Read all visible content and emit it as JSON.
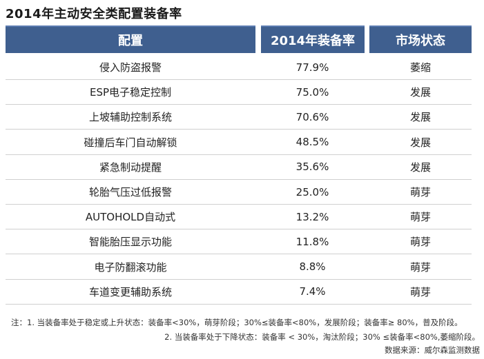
{
  "title": "2014年主动安全类配置装备率",
  "headers": {
    "config": "配置",
    "rate": "2014年装备率",
    "status": "市场状态"
  },
  "chart_data": {
    "type": "table",
    "title": "2014年主动安全类配置装备率",
    "columns": [
      "配置",
      "2014年装备率",
      "市场状态"
    ],
    "rows": [
      {
        "config": "侵入防盗报警",
        "rate": "77.9%",
        "status": "萎缩"
      },
      {
        "config": "ESP电子稳定控制",
        "rate": "75.0%",
        "status": "发展"
      },
      {
        "config": "上坡辅助控制系统",
        "rate": "70.6%",
        "status": "发展"
      },
      {
        "config": "碰撞后车门自动解锁",
        "rate": "48.5%",
        "status": "发展"
      },
      {
        "config": "紧急制动提醒",
        "rate": "35.6%",
        "status": "发展"
      },
      {
        "config": "轮胎气压过低报警",
        "rate": "25.0%",
        "status": "萌芽"
      },
      {
        "config": "AUTOHOLD自动式",
        "rate": "13.2%",
        "status": "萌芽"
      },
      {
        "config": "智能胎压显示功能",
        "rate": "11.8%",
        "status": "萌芽"
      },
      {
        "config": "电子防翻滚功能",
        "rate": "8.8%",
        "status": "萌芽"
      },
      {
        "config": "车道变更辅助系统",
        "rate": "7.4%",
        "status": "萌芽"
      }
    ]
  },
  "notes": {
    "line1": "注：1. 当装备率处于稳定或上升状态：装备率<30%，萌芽阶段；30%≤装备率<80%，发展阶段；装备率≥ 80%，普及阶段。",
    "line2": "2. 当装备率处于下降状态：装备率 < 30%，淘汰阶段；30% ≤装备率<80%,萎缩阶段。",
    "source": "数据来源：威尔森监测数据"
  }
}
